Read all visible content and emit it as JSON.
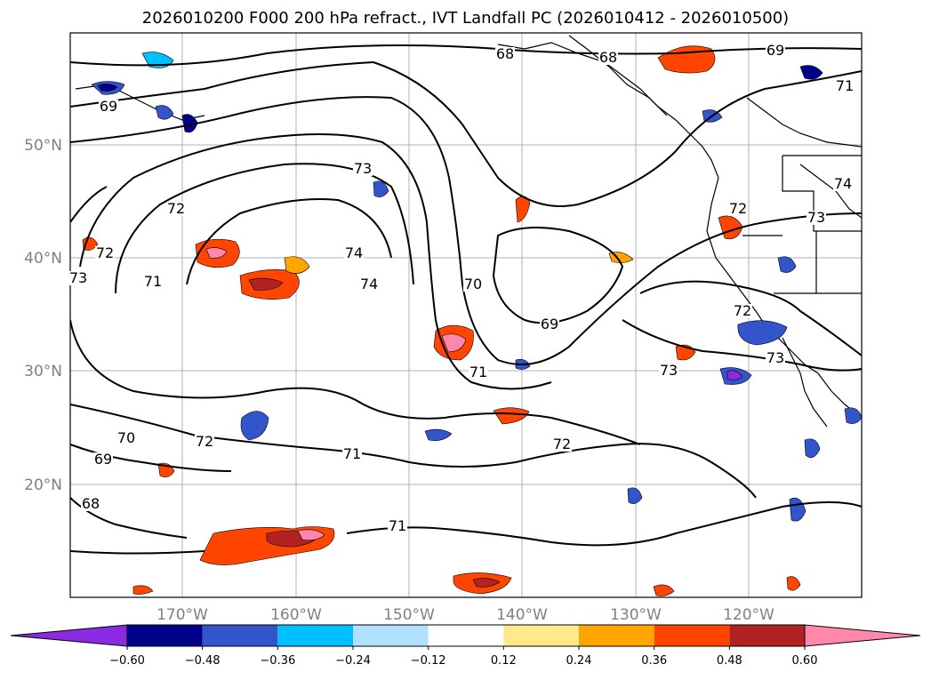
{
  "title": "2026010200 F000 200 hPa refract., IVT Landfall PC (2026010412 - 2026010500)",
  "longitude_labels": [
    "170°W",
    "160°W",
    "150°W",
    "140°W",
    "130°W",
    "120°W"
  ],
  "latitude_labels": [
    "50°N",
    "40°N",
    "30°N",
    "20°N"
  ],
  "colorbar": {
    "ticks": [
      "−0.60",
      "−0.48",
      "−0.36",
      "−0.24",
      "−0.12",
      "0.12",
      "0.24",
      "0.36",
      "0.48",
      "0.60"
    ],
    "colors": [
      "#8a2be2",
      "#00008b",
      "#3355cc",
      "#00bfff",
      "#b0e2ff",
      "#ffffff",
      "#ffe98a",
      "#ffa500",
      "#ff4500",
      "#b22222",
      "#ff88aa"
    ]
  },
  "contour_labels": [
    "68",
    "68",
    "69",
    "71",
    "69",
    "72",
    "72",
    "73",
    "73",
    "74",
    "74",
    "73",
    "72",
    "71",
    "70",
    "69",
    "71",
    "73",
    "72",
    "73",
    "70",
    "69",
    "68",
    "72",
    "71",
    "71",
    "72",
    "74"
  ]
}
